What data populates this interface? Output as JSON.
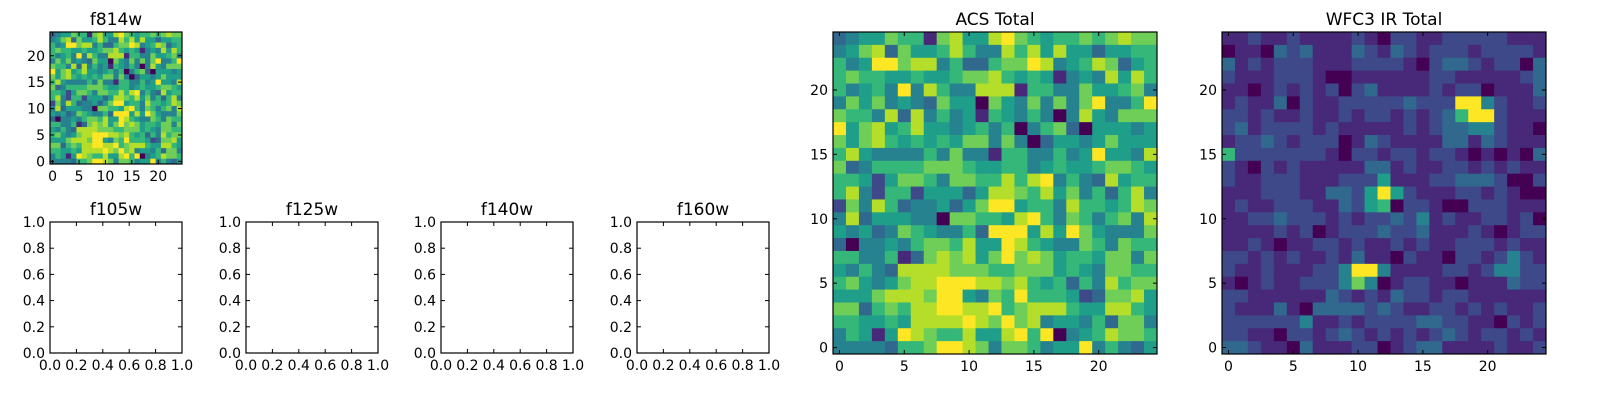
{
  "chart_data": [
    {
      "id": "f814w",
      "type": "heatmap",
      "title": "f814w",
      "xlim": [
        -0.5,
        24.5
      ],
      "ylim": [
        -0.5,
        24.5
      ],
      "xticks": [
        0,
        5,
        10,
        15,
        20
      ],
      "yticks": [
        0,
        5,
        10,
        15,
        20
      ],
      "rows_same_as": "acs_total"
    },
    {
      "id": "f105w",
      "type": "empty",
      "title": "f105w",
      "xlim": [
        0,
        1
      ],
      "ylim": [
        0,
        1
      ],
      "xticks": [
        "0.0",
        "0.2",
        "0.4",
        "0.6",
        "0.8",
        "1.0"
      ],
      "yticks": [
        "0.0",
        "0.2",
        "0.4",
        "0.6",
        "0.8",
        "1.0"
      ]
    },
    {
      "id": "f125w",
      "type": "empty",
      "title": "f125w",
      "xlim": [
        0,
        1
      ],
      "ylim": [
        0,
        1
      ],
      "xticks": [
        "0.0",
        "0.2",
        "0.4",
        "0.6",
        "0.8",
        "1.0"
      ],
      "yticks": [
        "0.0",
        "0.2",
        "0.4",
        "0.6",
        "0.8",
        "1.0"
      ]
    },
    {
      "id": "f140w",
      "type": "empty",
      "title": "f140w",
      "xlim": [
        0,
        1
      ],
      "ylim": [
        0,
        1
      ],
      "xticks": [
        "0.0",
        "0.2",
        "0.4",
        "0.6",
        "0.8",
        "1.0"
      ],
      "yticks": [
        "0.0",
        "0.2",
        "0.4",
        "0.6",
        "0.8",
        "1.0"
      ]
    },
    {
      "id": "f160w",
      "type": "empty",
      "title": "f160w",
      "xlim": [
        0,
        1
      ],
      "ylim": [
        0,
        1
      ],
      "xticks": [
        "0.0",
        "0.2",
        "0.4",
        "0.6",
        "0.8",
        "1.0"
      ],
      "yticks": [
        "0.0",
        "0.2",
        "0.4",
        "0.6",
        "0.8",
        "1.0"
      ]
    },
    {
      "id": "acs_total",
      "type": "heatmap",
      "title": "ACS Total",
      "xlim": [
        -0.5,
        24.5
      ],
      "ylim": [
        -0.5,
        24.5
      ],
      "xticks": [
        0,
        5,
        10,
        15,
        20
      ],
      "yticks": [
        0,
        5,
        10,
        15,
        20
      ],
      "value_scale": "0-9 relative intensity, rows listed from y=24 down to y=0",
      "rows": [
        "3455766178558976566767877",
        "4578375568644868585535566",
        "6459978846336779845687356",
        "6766556556778656514548586",
        "6456494864488816644755674",
        "4757454375507547474794469",
        "7664838464516546404854777",
        "9578568554564604673055545",
        "7578656565774740355457555",
        "6854444647441664464595548",
        "7346666777655664565567765",
        "6652577647766868946438566",
        "6842662555358876857463684",
        "2748634453579956648665687",
        "4835554407766589647646748",
        "5453476544639995859754447",
        "3044546776855986544764766",
        "6644613787857978756657747",
        "5464388887776677756547766",
        "6754578899988786563648677",
        "5557888799547696665237785",
        "7736768899889678886558865",
        "6655658888987978455463774",
        "4651598766855896904568776",
        "4444366799874776455946435"
      ]
    },
    {
      "id": "wfc3_ir_total",
      "type": "heatmap",
      "title": "WFC3 IR Total",
      "xlim": [
        -0.5,
        24.5
      ],
      "ylim": [
        -0.5,
        24.5
      ],
      "xticks": [
        0,
        5,
        10,
        15,
        20
      ],
      "yticks": [
        0,
        5,
        10,
        15,
        20
      ],
      "value_scale": "0-9 relative intensity, rows listed from y=24 down to y=0",
      "rows": [
        "1121121111210221122222111",
        "0110323111321321222122221",
        "3121222111222210233212203",
        "2111222100111111221111123",
        "1101212120231111212201113",
        "1211302112222232229942112",
        "2212112112122121236992111",
        "2312222121111121233442110",
        "1223212220132111133132111",
        "6222222210221221221010103",
        "2102121111133121122121211",
        "2112221112225111223332002",
        "1112221133259521112212100",
        "1211222113256022100222111",
        "1122322212122324121122120",
        "1111212012223223111210122",
        "1121011221211212112221211",
        "2212121121311021102212421",
        "2112111224994111122124422",
        "1012112224740122110111322",
        "2211111132121322122111111",
        "2111310333323211221212112",
        "2222224112122223322110212",
        "2211022123212121232122121",
        "3321103111220123311112112"
      ]
    }
  ],
  "colors": {
    "colormap": "viridis",
    "levels": [
      "#440154",
      "#482878",
      "#3e4989",
      "#31688e",
      "#26828e",
      "#1f9e89",
      "#35b779",
      "#6ece58",
      "#b5de2b",
      "#fde725"
    ]
  }
}
